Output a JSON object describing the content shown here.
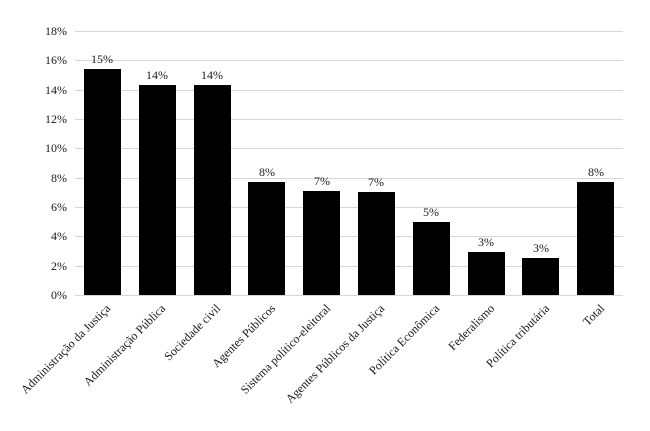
{
  "chart_data": {
    "type": "bar",
    "title": "",
    "categories": [
      "Administração da Justiça",
      "Administração Pública",
      "Sociedade civil",
      "Agentes Públicos",
      "Sistema político-eleitoral",
      "Agentes Públicos da Justiça",
      "Política Econômica",
      "Federalismo",
      "Política tributária",
      "Total"
    ],
    "values": [
      15.4,
      14.3,
      14.3,
      7.7,
      7.1,
      7.0,
      5.0,
      2.9,
      2.5,
      7.7
    ],
    "data_labels": [
      "15%",
      "14%",
      "14%",
      "8%",
      "7%",
      "7%",
      "5%",
      "3%",
      "3%",
      "8%"
    ],
    "xlabel": "",
    "ylabel": "",
    "ylim": [
      0,
      18
    ],
    "y_tick_step": 2,
    "y_tick_labels": [
      "0%",
      "2%",
      "4%",
      "6%",
      "8%",
      "10%",
      "12%",
      "14%",
      "16%",
      "18%"
    ],
    "grid": true,
    "legend": false,
    "bar_color": "#000000",
    "gridline_color": "#d6d6d6",
    "text_color": "#1a1a1a",
    "background": "#ffffff"
  }
}
